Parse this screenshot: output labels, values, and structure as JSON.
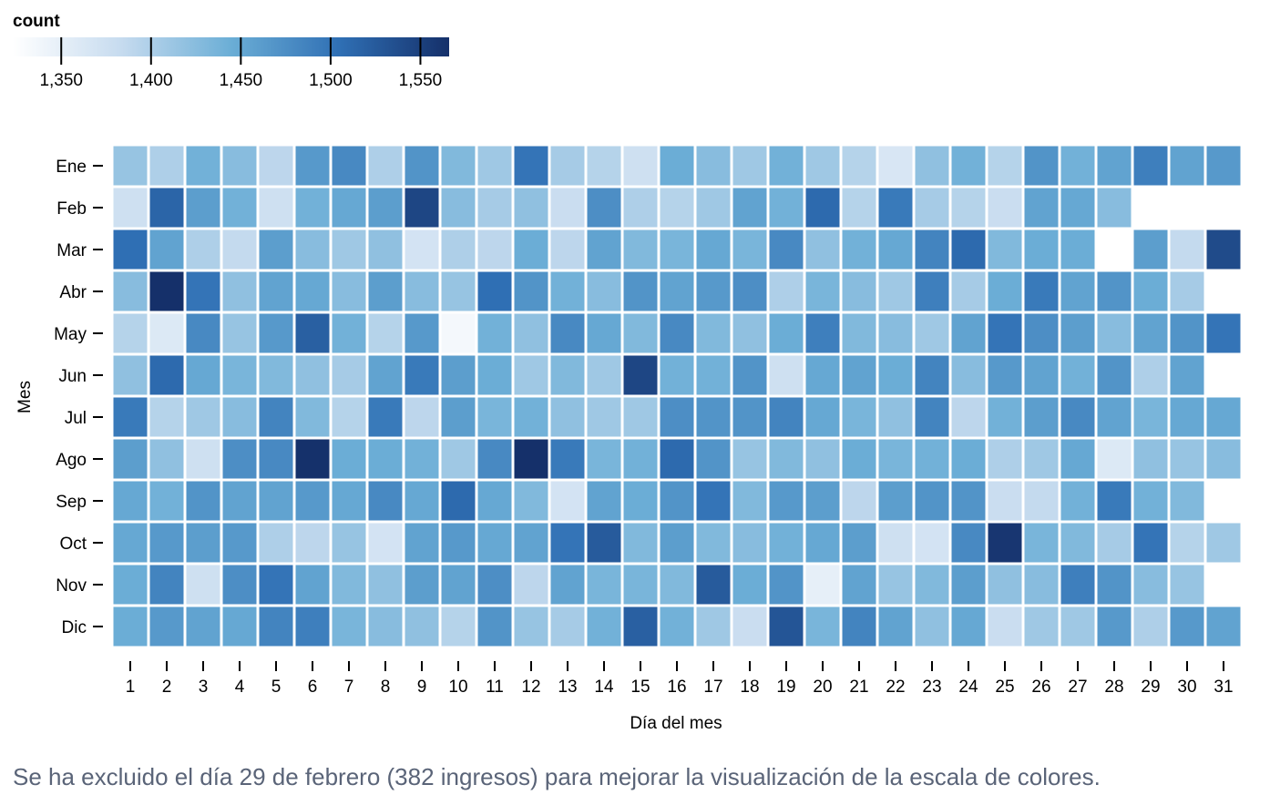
{
  "caption": "Se ha excluido el día 29 de febrero (382 ingresos) para mejorar la visualización de la escala de colores.",
  "chart_data": {
    "type": "heatmap",
    "title": "",
    "xlabel": "Día del mes",
    "ylabel": "Mes",
    "legend": {
      "title": "count",
      "placement": "top-left",
      "domain": [
        1323,
        1566
      ],
      "ticks": [
        1350,
        1400,
        1450,
        1500,
        1550
      ],
      "tick_labels": [
        "1,350",
        "1,400",
        "1,450",
        "1,500",
        "1,550"
      ],
      "colors": [
        "#ffffff",
        "#c6dbef",
        "#6baed6",
        "#2f6fb4",
        "#15306a"
      ]
    },
    "x": [
      "1",
      "2",
      "3",
      "4",
      "5",
      "6",
      "7",
      "8",
      "9",
      "10",
      "11",
      "12",
      "13",
      "14",
      "15",
      "16",
      "17",
      "18",
      "19",
      "20",
      "21",
      "22",
      "23",
      "24",
      "25",
      "26",
      "27",
      "28",
      "29",
      "30",
      "31"
    ],
    "y": [
      "Ene",
      "Feb",
      "Mar",
      "Abr",
      "May",
      "Jun",
      "Jul",
      "Ago",
      "Sep",
      "Oct",
      "Nov",
      "Dic"
    ],
    "values": [
      [
        1415,
        1400,
        1440,
        1425,
        1390,
        1465,
        1480,
        1400,
        1470,
        1430,
        1410,
        1500,
        1405,
        1395,
        1375,
        1445,
        1425,
        1410,
        1440,
        1410,
        1395,
        1365,
        1420,
        1440,
        1395,
        1470,
        1440,
        1455,
        1490,
        1455,
        1465
      ],
      [
        1375,
        1515,
        1460,
        1440,
        1375,
        1440,
        1450,
        1460,
        1545,
        1425,
        1405,
        1420,
        1380,
        1475,
        1400,
        1395,
        1410,
        1455,
        1440,
        1510,
        1395,
        1495,
        1405,
        1395,
        1380,
        1455,
        1450,
        1425,
        null,
        null,
        null
      ],
      [
        1505,
        1455,
        1400,
        1385,
        1460,
        1425,
        1410,
        1420,
        1370,
        1400,
        1390,
        1445,
        1390,
        1455,
        1430,
        1435,
        1450,
        1435,
        1480,
        1420,
        1440,
        1450,
        1485,
        1510,
        1430,
        1445,
        1445,
        1323,
        1460,
        1385,
        1540
      ],
      [
        1425,
        1566,
        1500,
        1420,
        1455,
        1450,
        1425,
        1460,
        1425,
        1415,
        1505,
        1470,
        1440,
        1425,
        1470,
        1455,
        1465,
        1475,
        1400,
        1435,
        1425,
        1410,
        1490,
        1405,
        1445,
        1495,
        1455,
        1470,
        1445,
        1405,
        null
      ],
      [
        1395,
        1360,
        1480,
        1415,
        1465,
        1520,
        1440,
        1395,
        1465,
        1335,
        1440,
        1420,
        1480,
        1450,
        1430,
        1480,
        1430,
        1420,
        1445,
        1490,
        1430,
        1425,
        1410,
        1455,
        1500,
        1475,
        1460,
        1425,
        1455,
        1470,
        1500
      ],
      [
        1420,
        1510,
        1450,
        1435,
        1430,
        1420,
        1405,
        1455,
        1495,
        1460,
        1445,
        1410,
        1430,
        1410,
        1545,
        1440,
        1440,
        1470,
        1375,
        1450,
        1455,
        1445,
        1485,
        1425,
        1465,
        1455,
        1440,
        1470,
        1400,
        1455,
        null
      ],
      [
        1495,
        1395,
        1410,
        1425,
        1485,
        1430,
        1395,
        1495,
        1390,
        1460,
        1435,
        1440,
        1420,
        1410,
        1410,
        1475,
        1470,
        1470,
        1485,
        1450,
        1435,
        1420,
        1485,
        1390,
        1440,
        1460,
        1480,
        1455,
        1435,
        1450,
        1450
      ],
      [
        1460,
        1420,
        1375,
        1475,
        1480,
        1565,
        1445,
        1445,
        1440,
        1410,
        1480,
        1566,
        1495,
        1435,
        1440,
        1510,
        1470,
        1415,
        1430,
        1420,
        1445,
        1435,
        1440,
        1445,
        1400,
        1410,
        1450,
        1360,
        1420,
        1415,
        1425
      ],
      [
        1450,
        1440,
        1470,
        1455,
        1455,
        1465,
        1450,
        1480,
        1450,
        1510,
        1450,
        1430,
        1370,
        1455,
        1445,
        1470,
        1500,
        1430,
        1465,
        1460,
        1390,
        1460,
        1470,
        1470,
        1380,
        1385,
        1440,
        1495,
        1440,
        1430,
        null
      ],
      [
        1450,
        1465,
        1460,
        1465,
        1400,
        1390,
        1415,
        1370,
        1455,
        1465,
        1450,
        1455,
        1500,
        1525,
        1430,
        1460,
        1430,
        1425,
        1440,
        1450,
        1460,
        1375,
        1370,
        1480,
        1560,
        1435,
        1430,
        1405,
        1500,
        1395,
        1410
      ],
      [
        1445,
        1485,
        1375,
        1475,
        1500,
        1455,
        1430,
        1420,
        1460,
        1455,
        1475,
        1390,
        1455,
        1435,
        1435,
        1430,
        1525,
        1445,
        1470,
        1350,
        1455,
        1415,
        1430,
        1460,
        1420,
        1425,
        1490,
        1470,
        1425,
        1415,
        null
      ],
      [
        1445,
        1465,
        1455,
        1450,
        1485,
        1490,
        1435,
        1425,
        1420,
        1395,
        1470,
        1415,
        1405,
        1440,
        1520,
        1440,
        1410,
        1380,
        1530,
        1435,
        1485,
        1455,
        1420,
        1450,
        1380,
        1410,
        1410,
        1465,
        1400,
        1465,
        1455
      ]
    ]
  }
}
